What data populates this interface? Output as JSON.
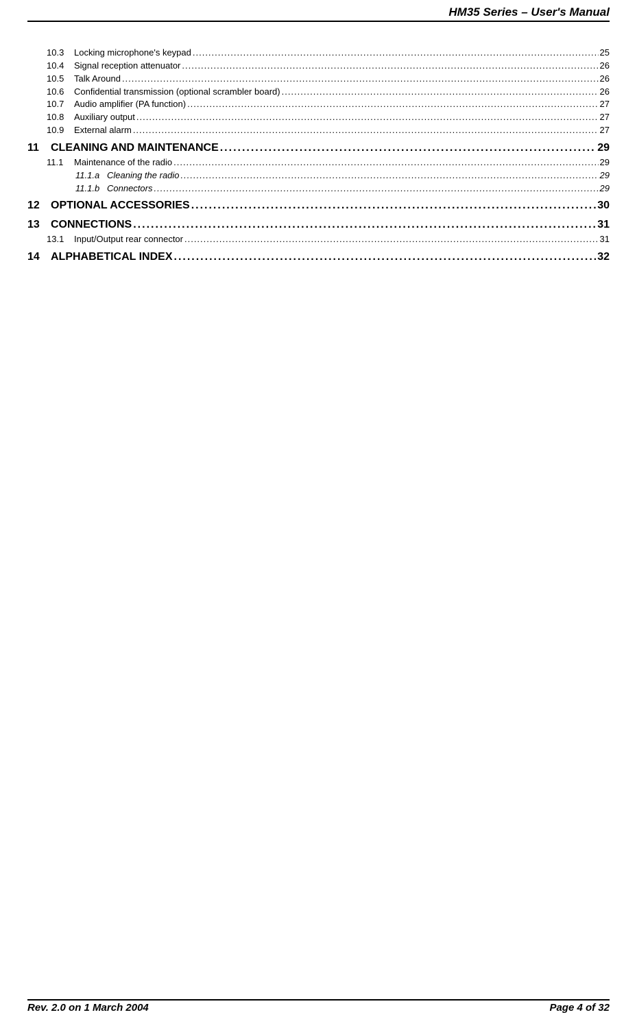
{
  "header": {
    "title": "HM35 Series – User's Manual"
  },
  "toc": {
    "items": [
      {
        "level": "sub",
        "num": "10.3",
        "text": "Locking microphone's keypad",
        "page": "25"
      },
      {
        "level": "sub",
        "num": "10.4",
        "text": "Signal reception attenuator",
        "page": "26"
      },
      {
        "level": "sub",
        "num": "10.5",
        "text": "Talk Around",
        "page": "26"
      },
      {
        "level": "sub",
        "num": "10.6",
        "text": "Confidential transmission (optional scrambler board)",
        "page": "26"
      },
      {
        "level": "sub",
        "num": "10.7",
        "text": "Audio amplifier (PA function)",
        "page": "27"
      },
      {
        "level": "sub",
        "num": "10.8",
        "text": "Auxiliary output",
        "page": "27"
      },
      {
        "level": "sub",
        "num": "10.9",
        "text": "External alarm",
        "page": "27"
      },
      {
        "level": "chapter",
        "num": "11",
        "text": "CLEANING AND MAINTENANCE",
        "page": "29"
      },
      {
        "level": "sub",
        "num": "11.1",
        "text": "Maintenance of the radio",
        "page": "29"
      },
      {
        "level": "subsub",
        "num": "11.1.a",
        "text": "Cleaning the radio",
        "page": "29"
      },
      {
        "level": "subsub",
        "num": "11.1.b",
        "text": "Connectors",
        "page": "29"
      },
      {
        "level": "chapter",
        "num": "12",
        "text": "OPTIONAL ACCESSORIES",
        "page": "30"
      },
      {
        "level": "chapter",
        "num": "13",
        "text": "CONNECTIONS",
        "page": "31"
      },
      {
        "level": "sub",
        "num": "13.1",
        "text": "Input/Output rear connector",
        "page": "31"
      },
      {
        "level": "chapter",
        "num": "14",
        "text": "ALPHABETICAL INDEX",
        "page": "32"
      }
    ]
  },
  "footer": {
    "left": "Rev. 2.0 on 1 March 2004",
    "right": "Page 4 of 32"
  },
  "colors": {
    "text": "#000000",
    "background": "#ffffff",
    "rule": "#000000"
  }
}
